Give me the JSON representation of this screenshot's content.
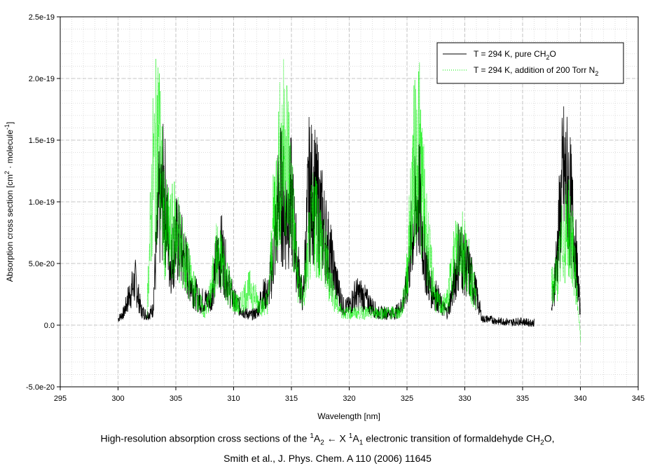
{
  "chart_data": {
    "type": "line",
    "xlabel": "Wavelength [nm]",
    "ylabel": {
      "pre": "Absorption cross section [cm",
      "sup1": "2",
      "mid": " · molecule",
      "sup2": "-1",
      "post": "]"
    },
    "xlim": [
      295,
      345
    ],
    "ylim": [
      -5e-20,
      2.5e-19
    ],
    "x_ticks": [
      295,
      300,
      305,
      310,
      315,
      320,
      325,
      330,
      335,
      340,
      345
    ],
    "x_tick_labels": [
      "295",
      "300",
      "305",
      "310",
      "315",
      "320",
      "325",
      "330",
      "335",
      "340",
      "345"
    ],
    "y_ticks": [
      -5e-20,
      0,
      5e-20,
      1e-19,
      1.5e-19,
      2e-19,
      2.5e-19
    ],
    "y_tick_labels": [
      "-5.0e-20",
      "0.0",
      "5.0e-20",
      "1.0e-19",
      "1.5e-19",
      "2.0e-19",
      "2.5e-19"
    ],
    "grid": true,
    "legend_position": "top-right",
    "series": [
      {
        "name": {
          "pre": "T = 294 K, pure CH",
          "sub": "2",
          "post": "O"
        },
        "color": "#000000",
        "style": "solid",
        "segments": [
          {
            "x": [
              300.0,
              300.5,
              301.0,
              301.5,
              302.0,
              302.5,
              303.0,
              303.5,
              304.0,
              304.5,
              305.0,
              305.5,
              306.0,
              306.5,
              307.0,
              307.5,
              308.0,
              308.5,
              309.0,
              309.5,
              310.0,
              310.5,
              311.0,
              311.5,
              312.0,
              312.5,
              313.0,
              313.5,
              314.0,
              314.5,
              315.0,
              315.5,
              316.0,
              316.5,
              317.0,
              317.5,
              318.0,
              318.5,
              319.0,
              319.5,
              320.0,
              320.5,
              321.0,
              321.5,
              322.0,
              322.5,
              323.0,
              323.5,
              324.0,
              324.5,
              325.0,
              325.5,
              326.0,
              326.5,
              327.0,
              327.5,
              328.0,
              328.5,
              329.0,
              329.5,
              330.0,
              330.5,
              331.0,
              331.5,
              332.0,
              332.5,
              333.0,
              333.5,
              334.0,
              334.5,
              335.0,
              335.5,
              336.0
            ],
            "y": [
              5e-21,
              1e-20,
              2.5e-20,
              3.5e-20,
              1.2e-20,
              8e-21,
              1.2e-20,
              9e-20,
              1.1e-19,
              5e-20,
              7e-20,
              6e-20,
              4.5e-20,
              3e-20,
              2e-20,
              2e-20,
              2e-20,
              5e-20,
              6e-20,
              3.5e-20,
              2e-20,
              1.5e-20,
              1e-20,
              8e-21,
              1e-20,
              2.5e-20,
              2.5e-20,
              6e-20,
              1.1e-19,
              9e-20,
              1e-19,
              5e-20,
              2e-20,
              1.1e-19,
              1.05e-19,
              9e-20,
              7e-20,
              5e-20,
              3e-20,
              1.5e-20,
              1.5e-20,
              2.5e-20,
              2.5e-20,
              2e-20,
              1.5e-20,
              1e-20,
              1e-20,
              1e-20,
              1e-20,
              1.5e-20,
              3e-20,
              8e-20,
              1.05e-19,
              6e-20,
              3e-20,
              2.5e-20,
              1.5e-20,
              1e-20,
              3e-20,
              6e-20,
              5e-20,
              4e-20,
              2.5e-20,
              5e-21,
              5e-21,
              4e-21,
              3e-21,
              3e-21,
              2e-21,
              3e-21,
              3e-21,
              2e-21,
              2e-21
            ]
          },
          {
            "x": [
              337.5,
              338.0,
              338.5,
              339.0,
              339.5,
              340.0
            ],
            "y": [
              1e-20,
              6e-20,
              1.2e-19,
              1.1e-19,
              7e-20,
              1e-20
            ]
          }
        ]
      },
      {
        "name": {
          "pre": "T = 294 K, addition of 200 Torr N",
          "sub": "2",
          "post": ""
        },
        "color": "#00ee00",
        "style": "dotted",
        "segments": [
          {
            "x": [
              302.5,
              303.0,
              303.5,
              304.0,
              304.5,
              305.0,
              305.5,
              306.0,
              306.5,
              307.0,
              307.5,
              308.0,
              308.5,
              309.0,
              309.5,
              310.0,
              310.5,
              311.0,
              311.5,
              312.0,
              312.5,
              313.0,
              313.5,
              314.0,
              314.5,
              315.0,
              315.5,
              316.0,
              316.5,
              317.0,
              317.5,
              318.0,
              318.5,
              319.0,
              319.5,
              320.0,
              320.5,
              321.0,
              321.5,
              322.0,
              322.5,
              323.0,
              323.5,
              324.0,
              324.5,
              325.0,
              325.5,
              326.0,
              326.5,
              327.0,
              327.5,
              328.0,
              328.5,
              329.0,
              329.5,
              330.0,
              330.5,
              331.0
            ],
            "y": [
              1e-20,
              1.2e-19,
              1.55e-19,
              8e-20,
              7e-20,
              8e-20,
              6e-20,
              4.5e-20,
              3e-20,
              2e-20,
              1e-20,
              2.5e-20,
              5.5e-20,
              5e-20,
              3.5e-20,
              2e-20,
              1.5e-20,
              2.5e-20,
              3e-20,
              2e-20,
              1.5e-20,
              2e-20,
              9e-20,
              1.3e-19,
              1.5e-19,
              1.05e-19,
              4e-20,
              2e-20,
              6e-20,
              9e-20,
              7e-20,
              5e-20,
              3e-20,
              1.5e-20,
              1e-20,
              1e-20,
              1e-20,
              1e-20,
              1e-20,
              1e-20,
              1e-20,
              1e-20,
              1e-20,
              1e-20,
              1e-20,
              4e-20,
              1.2e-19,
              1.5e-19,
              9e-20,
              5e-20,
              2e-20,
              1.5e-20,
              2e-20,
              5e-20,
              7e-20,
              6e-20,
              4e-20,
              2e-20
            ]
          },
          {
            "x": [
              337.5,
              338.0,
              338.5,
              339.0,
              339.5,
              340.0
            ],
            "y": [
              3e-20,
              4e-20,
              7e-20,
              8e-20,
              5e-20,
              -1e-20
            ]
          }
        ]
      }
    ]
  },
  "caption": {
    "line1_pre": "High-resolution absorption cross sections of the ",
    "sup_a": "1",
    "state1": "A",
    "sub_a": "2",
    "arrow": " ← X ",
    "sup_b": "1",
    "state2": "A",
    "sub_b": "1",
    "line1_post": " electronic transition of formaldehyde CH",
    "sub_c": "2",
    "line1_end": "O,",
    "line2": "Smith et al., J. Phys. Chem. A 110 (2006) 11645"
  }
}
